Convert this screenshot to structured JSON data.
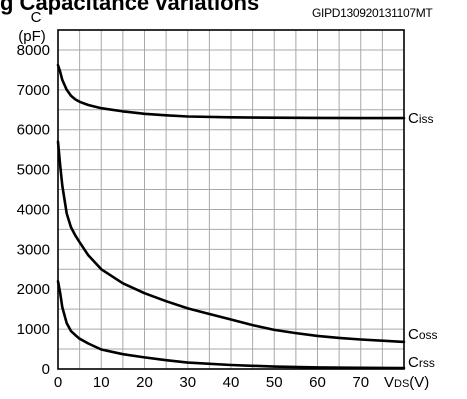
{
  "header": {
    "title_fragment": "g  Capacitance variations",
    "figure_code": "GIPD130920131107MT"
  },
  "chart_data": {
    "type": "line",
    "xlabel": "VDS(V)",
    "xlabel_main": "V",
    "xlabel_sub": "DS",
    "xlabel_unit": "(V)",
    "ylabel_line1": "C",
    "ylabel_line2": "(pF)",
    "xlim": [
      0,
      80
    ],
    "ylim": [
      0,
      8500
    ],
    "x_ticks": [
      0,
      10,
      20,
      30,
      40,
      50,
      60,
      70
    ],
    "y_ticks": [
      0,
      1000,
      2000,
      3000,
      4000,
      5000,
      6000,
      7000,
      8000
    ],
    "grid": true,
    "series": [
      {
        "name": "Ciss",
        "label_main": "C",
        "label_sub": "iss",
        "x": [
          0,
          0.5,
          1,
          2,
          3,
          4,
          5,
          7,
          10,
          15,
          20,
          25,
          30,
          40,
          50,
          60,
          70,
          80
        ],
        "y": [
          7620,
          7450,
          7250,
          7000,
          6850,
          6760,
          6700,
          6620,
          6540,
          6460,
          6400,
          6360,
          6330,
          6310,
          6300,
          6295,
          6290,
          6290
        ]
      },
      {
        "name": "Coss",
        "label_main": "C",
        "label_sub": "oss",
        "x": [
          0,
          0.5,
          1,
          2,
          3,
          4,
          5,
          7,
          10,
          15,
          20,
          25,
          30,
          35,
          40,
          45,
          50,
          55,
          60,
          65,
          70,
          75,
          80
        ],
        "y": [
          5700,
          5100,
          4600,
          3900,
          3550,
          3350,
          3180,
          2850,
          2500,
          2150,
          1900,
          1700,
          1520,
          1380,
          1240,
          1100,
          980,
          900,
          830,
          780,
          740,
          710,
          680
        ]
      },
      {
        "name": "Crss",
        "label_main": "C",
        "label_sub": "rss",
        "x": [
          0,
          0.5,
          1,
          2,
          3,
          4,
          5,
          7,
          10,
          15,
          20,
          25,
          30,
          40,
          50,
          60,
          70,
          80
        ],
        "y": [
          2200,
          1900,
          1550,
          1150,
          950,
          850,
          760,
          640,
          490,
          370,
          290,
          220,
          160,
          100,
          60,
          40,
          30,
          25
        ]
      }
    ]
  }
}
